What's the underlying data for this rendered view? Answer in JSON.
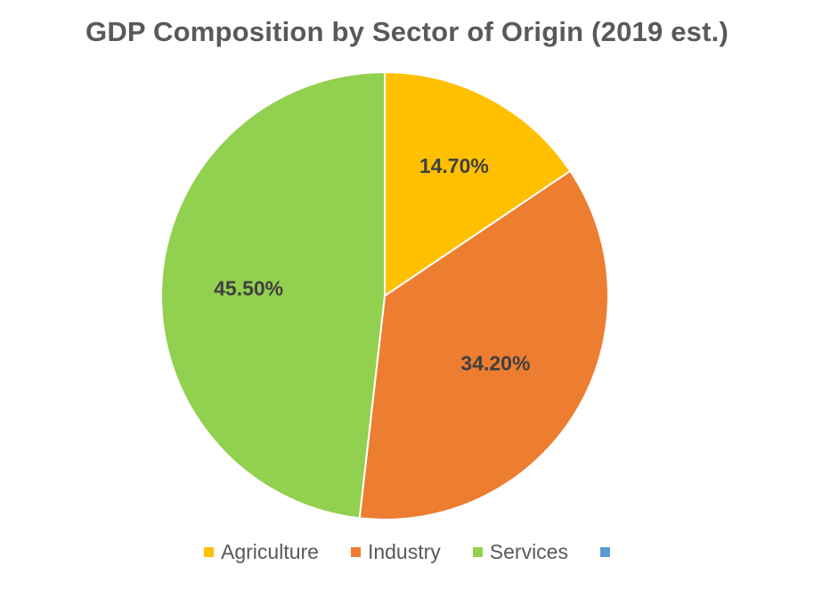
{
  "chart_data": {
    "type": "pie",
    "title": "GDP Composition by Sector of Origin (2019 est.)",
    "categories": [
      "Agriculture",
      "Industry",
      "Services",
      ""
    ],
    "values": [
      14.7,
      34.2,
      45.5,
      0
    ],
    "data_labels": [
      "14.70%",
      "34.20%",
      "45.50%",
      ""
    ],
    "colors": [
      "#FFC000",
      "#ED7D31",
      "#92D050",
      "#5B9BD5"
    ],
    "legend_position": "bottom",
    "start_angle_degrees": 0,
    "direction": "clockwise"
  }
}
